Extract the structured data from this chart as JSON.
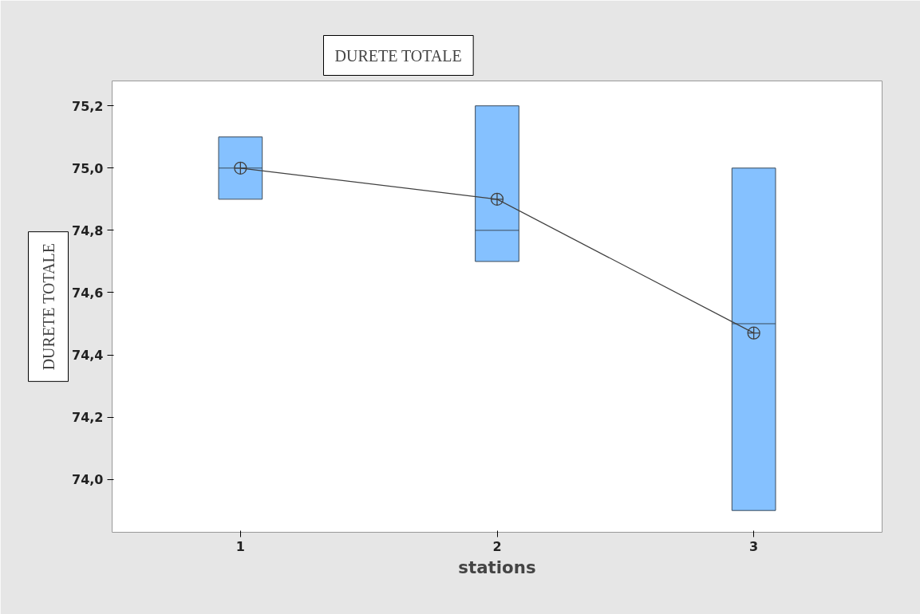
{
  "chart_data": {
    "type": "box",
    "title": "DURETE TOTALE",
    "xlabel": "stations",
    "ylabel": "DURETE TOTALE",
    "categories": [
      "1",
      "2",
      "3"
    ],
    "boxes": [
      {
        "low": 74.9,
        "q1": 74.9,
        "median": 75.0,
        "q3": 75.1,
        "high": 75.1
      },
      {
        "low": 74.7,
        "q1": 74.7,
        "median": 74.8,
        "q3": 75.2,
        "high": 75.2
      },
      {
        "low": 73.9,
        "q1": 73.9,
        "median": 74.5,
        "q3": 75.0,
        "high": 75.0
      }
    ],
    "color": "#85c1ff",
    "series": [
      {
        "type": "line",
        "x": [
          "1",
          "2",
          "3"
        ],
        "values": [
          75.0,
          74.9,
          74.47
        ],
        "color": "#404040",
        "marker": "circle"
      }
    ],
    "ylim": [
      73.83,
      75.28
    ],
    "yticks": [
      {
        "value": 74.0,
        "label": "74,0"
      },
      {
        "value": 74.2,
        "label": "74,2"
      },
      {
        "value": 74.4,
        "label": "74,4"
      },
      {
        "value": 74.6,
        "label": "74,6"
      },
      {
        "value": 74.8,
        "label": "74,8"
      },
      {
        "value": 75.0,
        "label": "75,0"
      },
      {
        "value": 75.2,
        "label": "75,2"
      }
    ],
    "grid": false
  }
}
